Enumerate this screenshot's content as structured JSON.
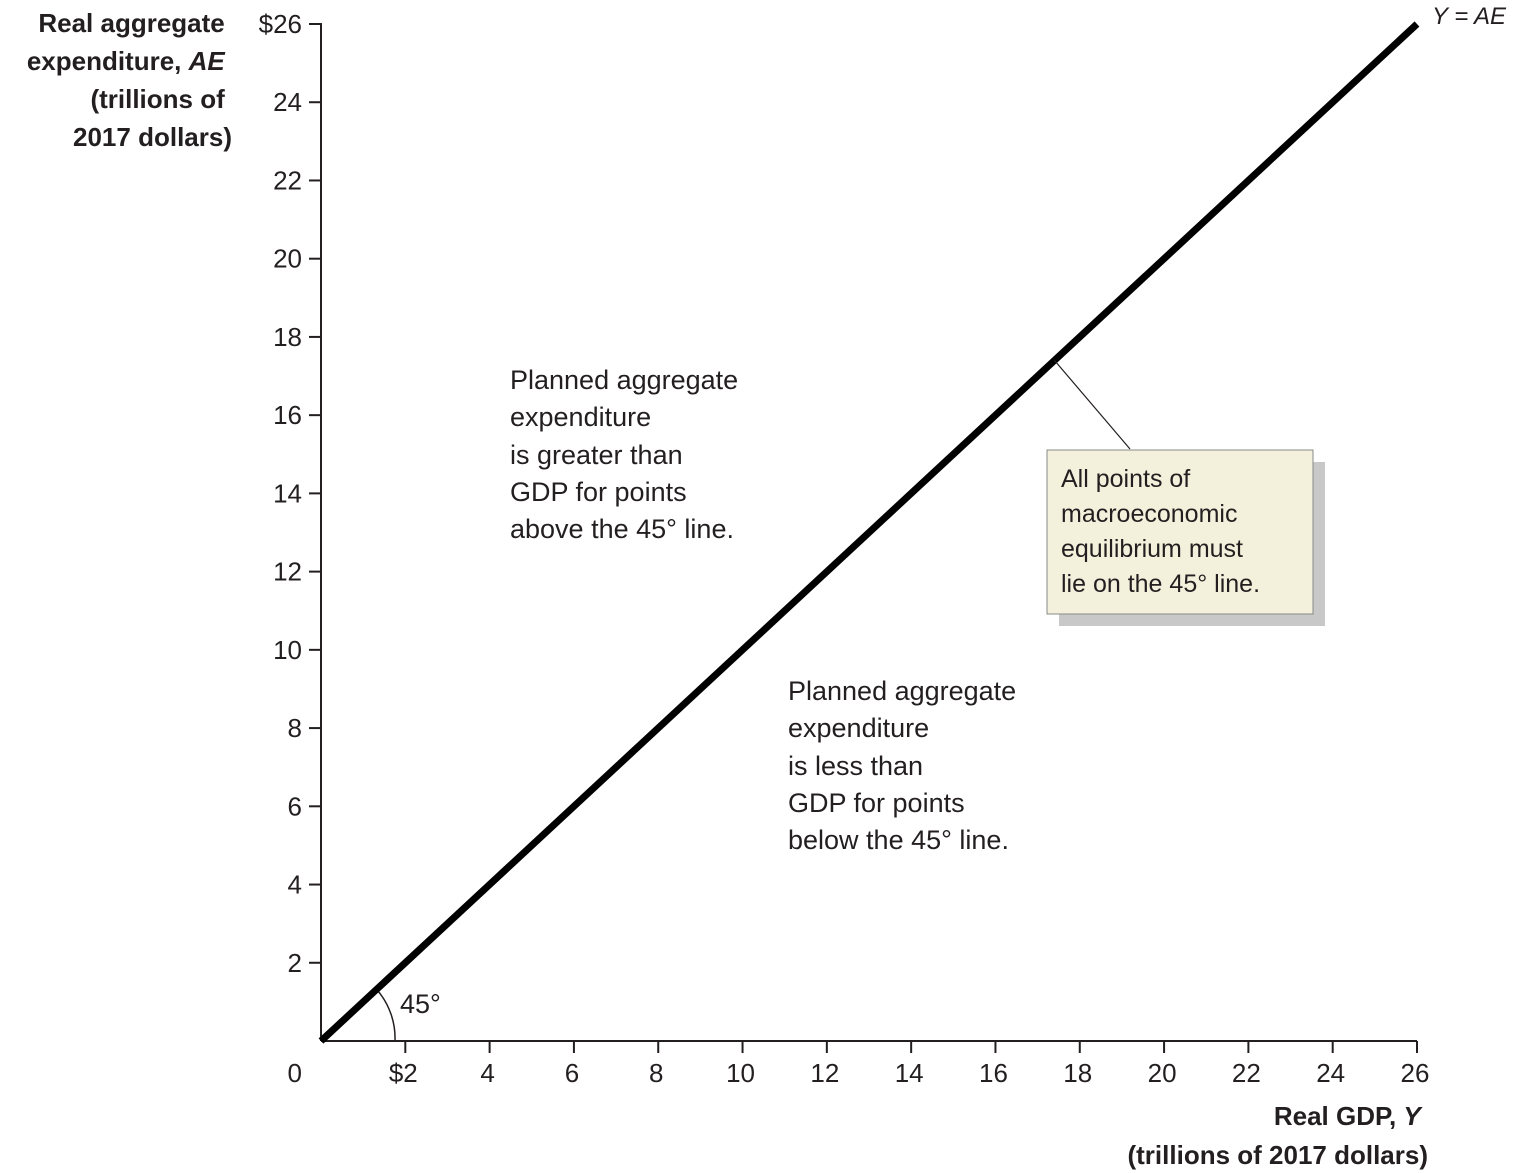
{
  "chart_data": {
    "type": "line",
    "xlabel_lines": [
      "Real GDP, Y",
      "(trillions of 2017 dollars)"
    ],
    "ylabel_lines": [
      "Real aggregate",
      "expenditure, AE",
      "(trillions of",
      "2017 dollars)"
    ],
    "xlim": [
      0,
      26
    ],
    "ylim": [
      0,
      26
    ],
    "x_ticks": [
      {
        "value": 2,
        "label": "$2"
      },
      {
        "value": 4,
        "label": "4"
      },
      {
        "value": 6,
        "label": "6"
      },
      {
        "value": 8,
        "label": "8"
      },
      {
        "value": 10,
        "label": "10"
      },
      {
        "value": 12,
        "label": "12"
      },
      {
        "value": 14,
        "label": "14"
      },
      {
        "value": 16,
        "label": "16"
      },
      {
        "value": 18,
        "label": "18"
      },
      {
        "value": 20,
        "label": "20"
      },
      {
        "value": 22,
        "label": "22"
      },
      {
        "value": 24,
        "label": "24"
      },
      {
        "value": 26,
        "label": "26"
      }
    ],
    "y_ticks": [
      {
        "value": 2,
        "label": "2"
      },
      {
        "value": 4,
        "label": "4"
      },
      {
        "value": 6,
        "label": "6"
      },
      {
        "value": 8,
        "label": "8"
      },
      {
        "value": 10,
        "label": "10"
      },
      {
        "value": 12,
        "label": "12"
      },
      {
        "value": 14,
        "label": "14"
      },
      {
        "value": 16,
        "label": "16"
      },
      {
        "value": 18,
        "label": "18"
      },
      {
        "value": 20,
        "label": "20"
      },
      {
        "value": 22,
        "label": "22"
      },
      {
        "value": 24,
        "label": "24"
      },
      {
        "value": 26,
        "label": "$26"
      }
    ],
    "origin_label": "0",
    "series": [
      {
        "name": "Y = AE",
        "x": [
          0,
          26
        ],
        "y": [
          0,
          26
        ],
        "color": "#000000"
      }
    ],
    "angle_label": "45°",
    "annotations": {
      "above": [
        "Planned aggregate",
        "expenditure",
        "is greater than",
        "GDP for points",
        "above the 45° line."
      ],
      "below": [
        "Planned aggregate",
        "expenditure",
        "is less than",
        "GDP for points",
        "below the 45° line."
      ],
      "callout": [
        "All points of",
        "macroeconomic",
        "equilibrium must",
        "lie on the 45° line."
      ]
    },
    "callout_point": [
      17.4,
      17.4
    ],
    "colors": {
      "line": "#000000",
      "axis": "#231f20",
      "callout_fill": "#f3f0dc",
      "callout_shadow": "#c8c8c8"
    },
    "grid": false
  }
}
